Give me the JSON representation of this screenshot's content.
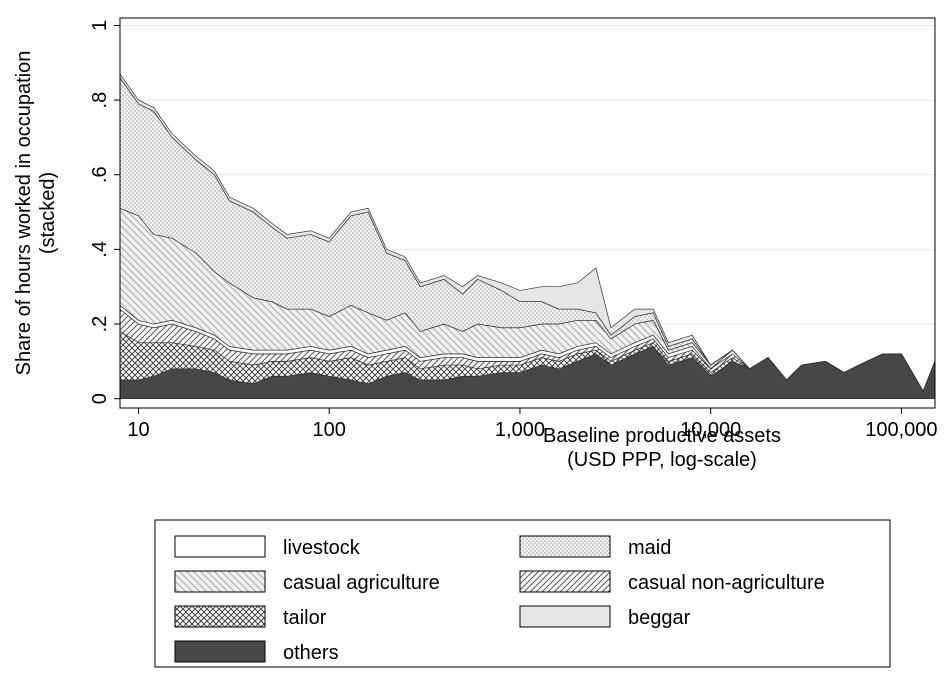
{
  "chart_data": {
    "type": "stacked-area",
    "log_x": true,
    "grid": true,
    "y_title": [
      "Share of hours worked in occupation",
      "(stacked)"
    ],
    "x_title": [
      "Baseline productive assets",
      "(USD PPP, log-scale)"
    ],
    "xlim": [
      8,
      150000
    ],
    "xticks": [
      10,
      100,
      {
        "value": 1000,
        "label": "1,000"
      },
      {
        "value": 10000,
        "label": "10,000"
      },
      {
        "value": 100000,
        "label": "100,000"
      }
    ],
    "ylim": [
      -0.025,
      1.02
    ],
    "yticks": [
      0,
      {
        "value": 0.2,
        "label": ".2"
      },
      {
        "value": 0.4,
        "label": ".4"
      },
      {
        "value": 0.6,
        "label": ".6"
      },
      {
        "value": 0.8,
        "label": ".8"
      },
      1
    ],
    "x": [
      8,
      10,
      12,
      15,
      20,
      25,
      30,
      40,
      50,
      60,
      80,
      100,
      130,
      160,
      200,
      250,
      300,
      400,
      500,
      600,
      800,
      1000,
      1300,
      1600,
      2000,
      2500,
      3000,
      4000,
      5000,
      6000,
      8000,
      10000,
      13000,
      16000,
      20000,
      25000,
      30000,
      40000,
      50000,
      60000,
      80000,
      100000,
      130000,
      150000
    ],
    "series": [
      {
        "name": "livestock",
        "color": "#ffffff",
        "pattern": "plain",
        "values": [
          0.01,
          0.01,
          0.01,
          0.01,
          0.01,
          0.01,
          0.01,
          0.01,
          0.01,
          0.01,
          0.01,
          0.01,
          0.01,
          0.01,
          0.01,
          0.01,
          0.01,
          0.01,
          0.01,
          0.01,
          0.01,
          0.01,
          0.01,
          0.01,
          0.01,
          0.01,
          0.01,
          0.01,
          0.01,
          0.01,
          0.01,
          0,
          0.01,
          0,
          0,
          0,
          0,
          0,
          0,
          0,
          0,
          0,
          0,
          0
        ]
      },
      {
        "name": "maid",
        "color": "#b0b0b0",
        "pattern": "dots",
        "values": [
          0.35,
          0.3,
          0.33,
          0.27,
          0.25,
          0.26,
          0.22,
          0.23,
          0.2,
          0.19,
          0.2,
          0.2,
          0.24,
          0.27,
          0.18,
          0.14,
          0.12,
          0.12,
          0.1,
          0.12,
          0.1,
          0.07,
          0.06,
          0.04,
          0.03,
          0.02,
          0.01,
          0.02,
          0.02,
          0.01,
          0.01,
          0,
          0,
          0,
          0,
          0,
          0,
          0,
          0,
          0,
          0,
          0,
          0,
          0
        ]
      },
      {
        "name": "casual agriculture",
        "color": "#b8b8b8",
        "pattern": "back",
        "values": [
          0.26,
          0.28,
          0.24,
          0.22,
          0.2,
          0.17,
          0.17,
          0.14,
          0.13,
          0.11,
          0.1,
          0.09,
          0.11,
          0.11,
          0.08,
          0.09,
          0.07,
          0.08,
          0.06,
          0.09,
          0.08,
          0.08,
          0.07,
          0.08,
          0.07,
          0.06,
          0.04,
          0.05,
          0.04,
          0.01,
          0.01,
          0.01,
          0,
          0,
          0,
          0,
          0,
          0,
          0,
          0,
          0,
          0,
          0,
          0
        ]
      },
      {
        "name": "casual non-agriculture",
        "color": "#555555",
        "pattern": "hatch",
        "values": [
          0.06,
          0.05,
          0.04,
          0.05,
          0.04,
          0.03,
          0.03,
          0.03,
          0.02,
          0.02,
          0.02,
          0.02,
          0.02,
          0.02,
          0.02,
          0.02,
          0.02,
          0.02,
          0.02,
          0.02,
          0.01,
          0.01,
          0.01,
          0.01,
          0.01,
          0.01,
          0.01,
          0.01,
          0.01,
          0.01,
          0.01,
          0.01,
          0.01,
          0,
          0,
          0,
          0,
          0,
          0,
          0,
          0,
          0,
          0,
          0
        ]
      },
      {
        "name": "tailor",
        "color": "#444444",
        "pattern": "cross",
        "values": [
          0.13,
          0.1,
          0.09,
          0.07,
          0.06,
          0.06,
          0.05,
          0.05,
          0.04,
          0.04,
          0.04,
          0.04,
          0.06,
          0.05,
          0.04,
          0.04,
          0.03,
          0.04,
          0.03,
          0.02,
          0.02,
          0.02,
          0.02,
          0.02,
          0.02,
          0.01,
          0.01,
          0.01,
          0.01,
          0.01,
          0.01,
          0.01,
          0.01,
          0,
          0,
          0,
          0,
          0,
          0,
          0,
          0,
          0,
          0,
          0
        ]
      },
      {
        "name": "beggar",
        "color": "#e6e6e6",
        "pattern": "plain",
        "values": [
          0.01,
          0.01,
          0.01,
          0.01,
          0.01,
          0.01,
          0.01,
          0.01,
          0.01,
          0.01,
          0.01,
          0.01,
          0.01,
          0.01,
          0.01,
          0.01,
          0.01,
          0.01,
          0.02,
          0.01,
          0.02,
          0.03,
          0.04,
          0.06,
          0.07,
          0.12,
          0.02,
          0.02,
          0.01,
          0.01,
          0.01,
          0,
          0,
          0,
          0,
          0,
          0,
          0,
          0,
          0,
          0,
          0,
          0,
          0
        ]
      },
      {
        "name": "others",
        "color": "#474747",
        "pattern": "plain",
        "values": [
          0.05,
          0.05,
          0.06,
          0.08,
          0.08,
          0.07,
          0.05,
          0.04,
          0.06,
          0.06,
          0.07,
          0.06,
          0.05,
          0.04,
          0.06,
          0.07,
          0.05,
          0.05,
          0.06,
          0.06,
          0.07,
          0.07,
          0.09,
          0.08,
          0.1,
          0.12,
          0.09,
          0.12,
          0.14,
          0.09,
          0.11,
          0.06,
          0.1,
          0.08,
          0.11,
          0.05,
          0.09,
          0.1,
          0.07,
          0.09,
          0.12,
          0.12,
          0.02,
          0.1
        ]
      }
    ]
  }
}
